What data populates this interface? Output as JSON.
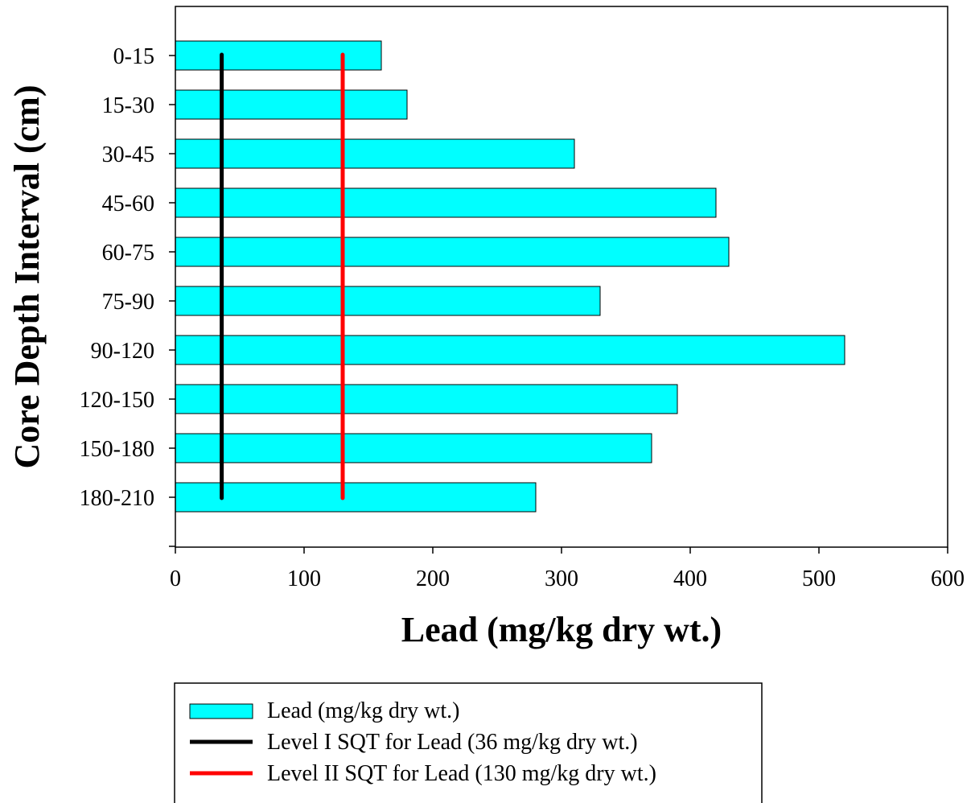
{
  "chart_data": {
    "type": "bar",
    "orientation": "horizontal",
    "categories": [
      "0-15",
      "15-30",
      "30-45",
      "45-60",
      "60-75",
      "75-90",
      "90-120",
      "120-150",
      "150-180",
      "180-210"
    ],
    "series": [
      {
        "name": "Lead (mg/kg dry wt.)",
        "values": [
          160,
          180,
          310,
          420,
          430,
          330,
          520,
          390,
          370,
          280
        ],
        "color": "#00ffff"
      }
    ],
    "reference_lines": [
      {
        "name": "Level I SQT for Lead (36 mg/kg dry wt.)",
        "value": 36,
        "color": "#000000"
      },
      {
        "name": "Level II SQT for Lead (130 mg/kg dry wt.)",
        "value": 130,
        "color": "#ff0000"
      }
    ],
    "xlabel": "Lead (mg/kg dry wt.)",
    "ylabel": "Core Depth Interval (cm)",
    "xlim": [
      0,
      600
    ],
    "xticks": [
      0,
      100,
      200,
      300,
      400,
      500,
      600
    ],
    "grid": false,
    "legend_position": "bottom"
  }
}
